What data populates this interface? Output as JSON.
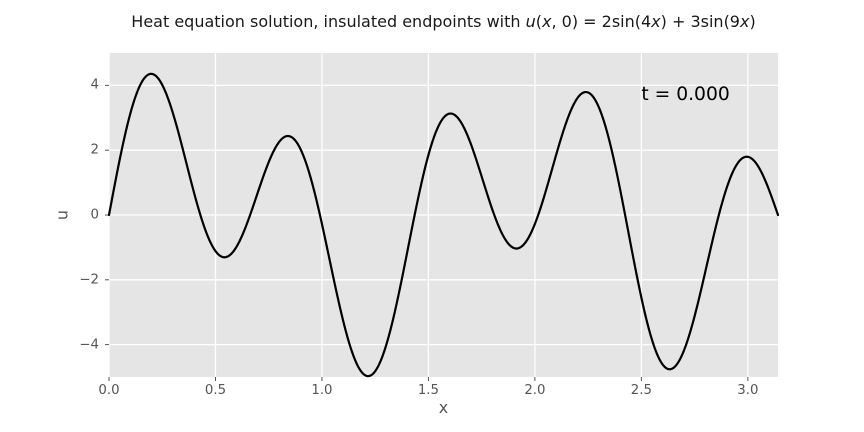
{
  "chart_data": {
    "type": "line",
    "title": "Heat equation solution, insulated endpoints with u(x, 0) = 2sin(4x) + 3sin(9x)",
    "title_segments": [
      {
        "text": "Heat equation solution, insulated endpoints with ",
        "italic": false
      },
      {
        "text": "u",
        "italic": true
      },
      {
        "text": "(",
        "italic": false
      },
      {
        "text": "x",
        "italic": true
      },
      {
        "text": ", 0) = 2sin(4",
        "italic": false
      },
      {
        "text": "x",
        "italic": true
      },
      {
        "text": ") + 3sin(9",
        "italic": false
      },
      {
        "text": "x",
        "italic": true
      },
      {
        "text": ")",
        "italic": false
      }
    ],
    "xlabel": "x",
    "ylabel": "u",
    "xlim": [
      0,
      3.14159265
    ],
    "ylim": [
      -5,
      5
    ],
    "xticks": {
      "values": [
        0.0,
        0.5,
        1.0,
        1.5,
        2.0,
        2.5,
        3.0
      ],
      "labels": [
        "0.0",
        "0.5",
        "1.0",
        "1.5",
        "2.0",
        "2.5",
        "3.0"
      ]
    },
    "yticks": {
      "values": [
        -4,
        -2,
        0,
        2,
        4
      ],
      "labels": [
        "−4",
        "−2",
        "0",
        "2",
        "4"
      ]
    },
    "grid": true,
    "legend": null,
    "annotation": {
      "text": "t = 0.000",
      "x": 2.5,
      "y": 3.6
    },
    "series": [
      {
        "name": "u(x, 0)",
        "formula": "u(x) = 2*sin(4*x) + 3*sin(9*x)",
        "terms": [
          {
            "amplitude": 2,
            "frequency": 4
          },
          {
            "amplitude": 3,
            "frequency": 9
          }
        ],
        "x_range": [
          0,
          3.14159265
        ],
        "num_points": 600,
        "color": "#000000",
        "line_width": 2.2,
        "key_points": [
          {
            "x": 0.0,
            "u": 0.0
          },
          {
            "x": 0.2,
            "u": 4.36
          },
          {
            "x": 0.55,
            "u": -1.3
          },
          {
            "x": 0.84,
            "u": 2.43
          },
          {
            "x": 1.22,
            "u": -4.97
          },
          {
            "x": 1.6,
            "u": 3.13
          },
          {
            "x": 1.9,
            "u": -1.02
          },
          {
            "x": 2.24,
            "u": 3.8
          },
          {
            "x": 2.63,
            "u": -4.76
          },
          {
            "x": 3.0,
            "u": 1.8
          },
          {
            "x": 3.14159265,
            "u": 0.0
          }
        ]
      }
    ],
    "colors": {
      "figure_bg": "#ffffff",
      "axes_bg": "#e5e5e5",
      "grid": "#ffffff",
      "tick_color": "#555555",
      "label_color": "#555555",
      "title_color": "#1a1a1a",
      "annotation_color": "#000000"
    }
  }
}
